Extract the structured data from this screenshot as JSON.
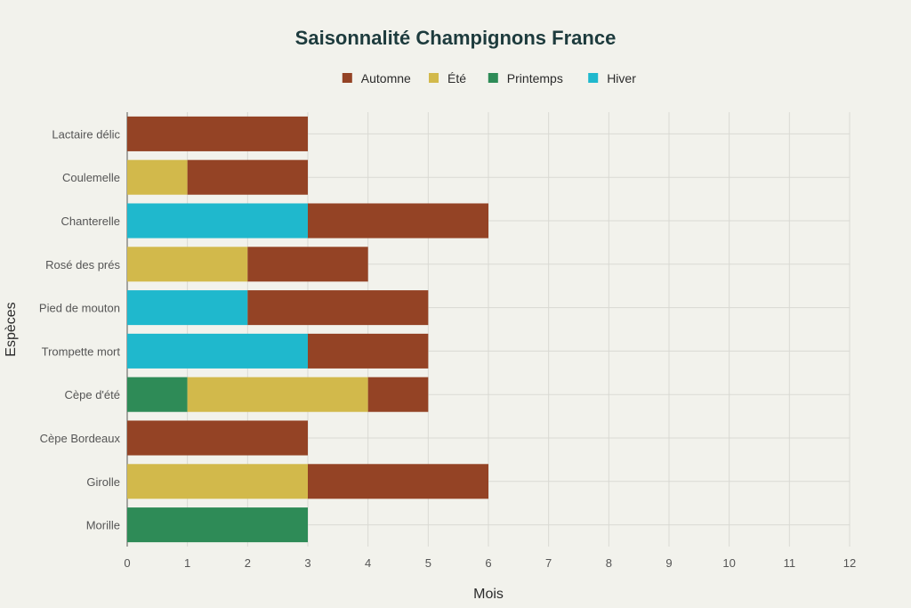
{
  "chart_data": {
    "type": "bar",
    "orientation": "horizontal",
    "stacked": true,
    "title": "Saisonnalité Champignons France",
    "xlabel": "Mois",
    "ylabel": "Espèces",
    "xlim": [
      0,
      12
    ],
    "x_ticks": [
      "0",
      "1",
      "2",
      "3",
      "4",
      "5",
      "6",
      "7",
      "8",
      "9",
      "10",
      "11",
      "12"
    ],
    "grid": true,
    "legend_position": "top-center",
    "categories": [
      "Lactaire délic",
      "Coulemelle",
      "Chanterelle",
      "Rosé des prés",
      "Pied de mouton",
      "Trompette mort",
      "Cèpe d'été",
      "Cèpe Bordeaux",
      "Girolle",
      "Morille"
    ],
    "series": [
      {
        "name": "Printemps",
        "color": "#2e8b57",
        "values": [
          0,
          0,
          0,
          0,
          0,
          0,
          1,
          0,
          0,
          3
        ]
      },
      {
        "name": "Été",
        "color": "#d2b94b",
        "values": [
          0,
          1,
          0,
          2,
          0,
          0,
          3,
          0,
          3,
          0
        ]
      },
      {
        "name": "Hiver",
        "color": "#1fb8cd",
        "values": [
          0,
          0,
          3,
          0,
          2,
          3,
          0,
          0,
          0,
          0
        ]
      },
      {
        "name": "Automne",
        "color": "#944325",
        "values": [
          3,
          2,
          3,
          2,
          3,
          2,
          1,
          3,
          3,
          0
        ]
      }
    ],
    "legend": [
      "Automne",
      "Été",
      "Printemps",
      "Hiver"
    ]
  }
}
